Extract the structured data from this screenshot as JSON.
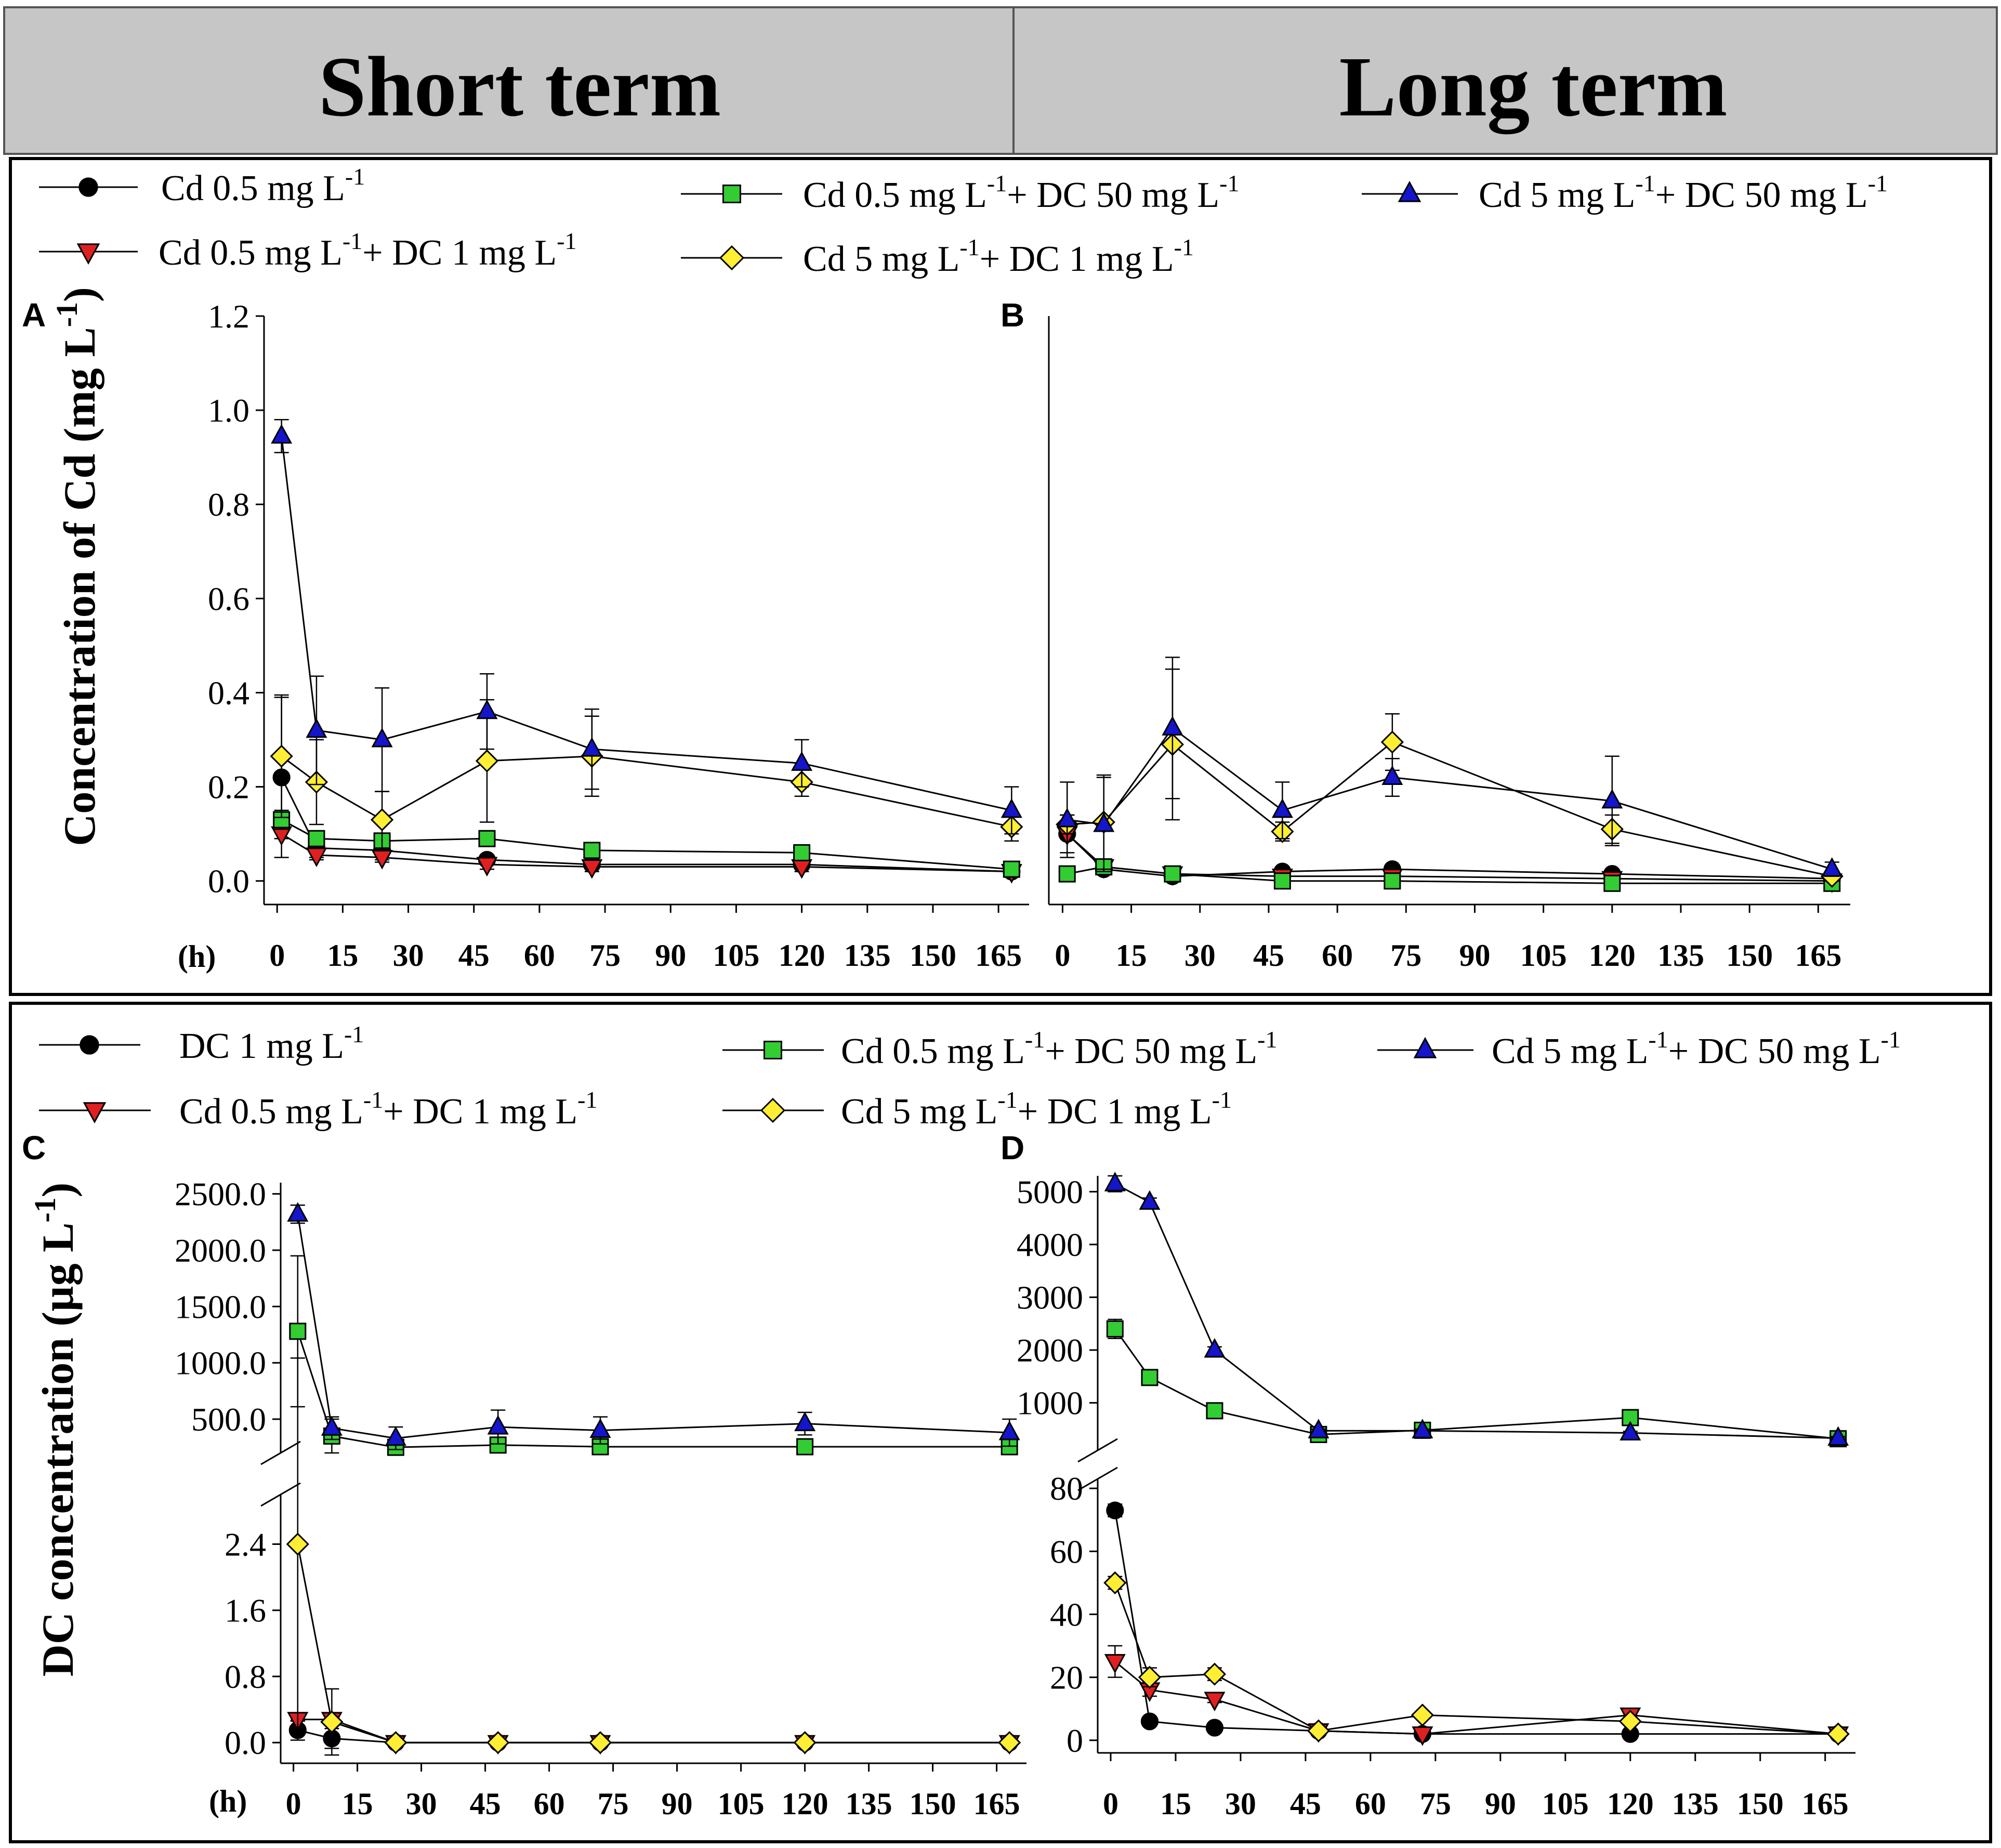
{
  "headers": {
    "short": "Short term",
    "long": "Long term"
  },
  "legend_top": {
    "items": [
      {
        "main": "Cd 0.5 mg L",
        "sup1": "-1",
        "mid": "",
        "sup2": "",
        "marker": "circle",
        "color": "#000000"
      },
      {
        "main": "Cd 0.5 mg L",
        "sup1": "-1",
        "mid": "+ DC 50 mg L",
        "sup2": "-1",
        "marker": "square",
        "color": "#33cc33"
      },
      {
        "main": "Cd 5 mg L",
        "sup1": "-1",
        "mid": "+ DC 50 mg L",
        "sup2": "-1",
        "marker": "triangle-up",
        "color": "#1515cc"
      },
      {
        "main": "Cd 0.5 mg L",
        "sup1": "-1",
        "mid": "+ DC 1 mg L",
        "sup2": "-1",
        "marker": "triangle-down",
        "color": "#e02020"
      },
      {
        "main": "Cd 5 mg L",
        "sup1": "-1",
        "mid": "+ DC 1 mg L",
        "sup2": "-1",
        "marker": "diamond",
        "color": "#ffee33"
      }
    ]
  },
  "legend_bottom": {
    "items": [
      {
        "main": "DC 1 mg L",
        "sup1": "-1",
        "mid": "",
        "sup2": "",
        "marker": "circle",
        "color": "#000000"
      },
      {
        "main": "Cd 0.5 mg L",
        "sup1": "-1",
        "mid": "+ DC 50 mg L",
        "sup2": "-1",
        "marker": "square",
        "color": "#33cc33"
      },
      {
        "main": "Cd 5 mg L",
        "sup1": "-1",
        "mid": "+ DC 50 mg L",
        "sup2": "-1",
        "marker": "triangle-up",
        "color": "#1515cc"
      },
      {
        "main": "Cd 0.5 mg L",
        "sup1": "-1",
        "mid": "+ DC 1 mg L",
        "sup2": "-1",
        "marker": "triangle-down",
        "color": "#e02020"
      },
      {
        "main": "Cd 5 mg L",
        "sup1": "-1",
        "mid": "+ DC 1 mg L",
        "sup2": "-1",
        "marker": "diamond",
        "color": "#ffee33"
      }
    ]
  },
  "y_labels": {
    "top": {
      "main": "Concentration of Cd (mg L",
      "sup": "-1",
      "tail": ")"
    },
    "bottom": {
      "main": "DC concentration (µg L",
      "sup": "-1",
      "tail": ")"
    }
  },
  "chart_data": [
    {
      "id": "A",
      "type": "line",
      "panel_label": "A",
      "xlabel": "(h)",
      "xlim": [
        -3,
        172
      ],
      "ylim": [
        -0.05,
        1.2
      ],
      "x_ticks": [
        0,
        15,
        30,
        45,
        60,
        75,
        90,
        105,
        120,
        135,
        150,
        165
      ],
      "y_ticks": [
        0.0,
        0.2,
        0.4,
        0.6,
        0.8,
        1.0,
        1.2
      ],
      "y_tick_labels": [
        "0.0",
        "0.2",
        "0.4",
        "0.6",
        "0.8",
        "1.0",
        "1.2"
      ],
      "series": [
        {
          "name": "Cd 0.5 mg L-1",
          "marker": "circle",
          "color": "#000000",
          "x": [
            1,
            9,
            24,
            48,
            72,
            120,
            168
          ],
          "y": [
            0.22,
            0.07,
            0.065,
            0.045,
            0.035,
            0.035,
            0.02
          ],
          "err": [
            0.17,
            0.02,
            0.02,
            0.01,
            0.01,
            0.01,
            0.01
          ]
        },
        {
          "name": "Cd 0.5 mg L-1+ DC 1 mg L-1",
          "marker": "triangle-down",
          "color": "#e02020",
          "x": [
            1,
            9,
            24,
            48,
            72,
            120,
            168
          ],
          "y": [
            0.1,
            0.055,
            0.05,
            0.035,
            0.03,
            0.03,
            0.02
          ],
          "err": [
            0.01,
            0.01,
            0.01,
            0.01,
            0.01,
            0.01,
            0.01
          ]
        },
        {
          "name": "Cd 0.5 mg L-1+ DC 50 mg L-1",
          "marker": "square",
          "color": "#33cc33",
          "x": [
            1,
            9,
            24,
            48,
            72,
            120,
            168
          ],
          "y": [
            0.13,
            0.09,
            0.085,
            0.09,
            0.065,
            0.06,
            0.025
          ],
          "err": [
            0.02,
            0.01,
            0.01,
            0.01,
            0.01,
            0.01,
            0.01
          ]
        },
        {
          "name": "Cd 5 mg L-1+ DC 1 mg L-1",
          "marker": "diamond",
          "color": "#ffee33",
          "x": [
            1,
            9,
            24,
            48,
            72,
            120,
            168
          ],
          "y": [
            0.265,
            0.21,
            0.13,
            0.255,
            0.265,
            0.21,
            0.115
          ],
          "err": [
            0.13,
            0.09,
            0.06,
            0.13,
            0.085,
            0.03,
            0.03
          ]
        },
        {
          "name": "Cd 5 mg L-1+ DC 50 mg L-1",
          "marker": "triangle-up",
          "color": "#1515cc",
          "x": [
            1,
            9,
            24,
            48,
            72,
            120,
            168
          ],
          "y": [
            0.945,
            0.32,
            0.3,
            0.36,
            0.28,
            0.25,
            0.15
          ],
          "err": [
            0.035,
            0.115,
            0.11,
            0.08,
            0.085,
            0.05,
            0.05
          ]
        }
      ]
    },
    {
      "id": "B",
      "type": "line",
      "panel_label": "B",
      "xlabel": "",
      "xlim": [
        -3,
        172
      ],
      "ylim": [
        -0.05,
        1.2
      ],
      "x_ticks": [
        0,
        15,
        30,
        45,
        60,
        75,
        90,
        105,
        120,
        135,
        150,
        165
      ],
      "y_ticks": [],
      "y_tick_labels": [],
      "series": [
        {
          "name": "Cd 0.5 mg L-1",
          "marker": "circle",
          "color": "#000000",
          "x": [
            1,
            9,
            24,
            48,
            72,
            120,
            168
          ],
          "y": [
            0.1,
            0.025,
            0.01,
            0.02,
            0.025,
            0.015,
            0.005
          ],
          "err": [
            0.04,
            0.005,
            0.005,
            0.005,
            0.005,
            0.005,
            0.005
          ]
        },
        {
          "name": "Cd 0.5 mg L-1+ DC 1 mg L-1",
          "marker": "triangle-down",
          "color": "#e02020",
          "x": [
            1,
            9,
            24,
            48,
            72,
            120,
            168
          ],
          "y": [
            0.1,
            0.03,
            0.015,
            0.01,
            0.01,
            0.005,
            0.0
          ],
          "err": [
            0.01,
            0.005,
            0.005,
            0.005,
            0.005,
            0.005,
            0.005
          ]
        },
        {
          "name": "Cd 0.5 mg L-1+ DC 50 mg L-1",
          "marker": "square",
          "color": "#33cc33",
          "x": [
            1,
            9,
            24,
            48,
            72,
            120,
            168
          ],
          "y": [
            0.015,
            0.03,
            0.015,
            0.0,
            0.0,
            -0.005,
            -0.005
          ],
          "err": [
            0.005,
            0.005,
            0.005,
            0.005,
            0.005,
            0.005,
            0.005
          ]
        },
        {
          "name": "Cd 5 mg L-1+ DC 1 mg L-1",
          "marker": "diamond",
          "color": "#ffee33",
          "x": [
            1,
            9,
            24,
            48,
            72,
            120,
            168
          ],
          "y": [
            0.12,
            0.125,
            0.29,
            0.105,
            0.295,
            0.11,
            0.01
          ],
          "err": [
            0.02,
            0.1,
            0.16,
            0.02,
            0.06,
            0.03,
            0.01
          ]
        },
        {
          "name": "Cd 5 mg L-1+ DC 50 mg L-1",
          "marker": "triangle-up",
          "color": "#1515cc",
          "x": [
            1,
            9,
            24,
            48,
            72,
            120,
            168
          ],
          "y": [
            0.13,
            0.12,
            0.325,
            0.15,
            0.22,
            0.17,
            0.025
          ],
          "err": [
            0.08,
            0.1,
            0.15,
            0.06,
            0.04,
            0.095,
            0.015
          ]
        }
      ]
    },
    {
      "id": "C",
      "type": "line",
      "panel_label": "C",
      "xlabel": "(h)",
      "xlim": [
        -3,
        172
      ],
      "x_ticks": [
        0,
        15,
        30,
        45,
        60,
        75,
        90,
        105,
        120,
        135,
        150,
        165
      ],
      "broken_axis": true,
      "upper": {
        "ylim": [
          200,
          2600
        ],
        "y_ticks": [
          500,
          1000,
          1500,
          2000,
          2500
        ],
        "y_tick_labels": [
          "500.0",
          "1000.0",
          "1500.0",
          "2000.0",
          "2500.0"
        ],
        "series": [
          {
            "name": "Cd 0.5 mg L-1+ DC 50 mg L-1",
            "marker": "square",
            "color": "#33cc33",
            "x": [
              1,
              9,
              24,
              48,
              72,
              120,
              168
            ],
            "y": [
              1280,
              350,
              250,
              270,
              255,
              255,
              255
            ],
            "err": [
              670,
              150,
              20,
              20,
              20,
              20,
              20
            ]
          },
          {
            "name": "Cd 5 mg L-1+ DC 50 mg L-1",
            "marker": "triangle-up",
            "color": "#1515cc",
            "x": [
              1,
              9,
              24,
              48,
              72,
              120,
              168
            ],
            "y": [
              2320,
              420,
              330,
              430,
              400,
              460,
              380
            ],
            "err": [
              80,
              100,
              100,
              150,
              120,
              100,
              120
            ]
          }
        ]
      },
      "lower": {
        "ylim": [
          -0.25,
          3.0
        ],
        "y_ticks": [
          0.0,
          0.8,
          1.6,
          2.4
        ],
        "y_tick_labels": [
          "0.0",
          "0.8",
          "1.6",
          "2.4"
        ],
        "series": [
          {
            "name": "DC 1 mg L-1",
            "marker": "circle",
            "color": "#000000",
            "x": [
              1,
              9,
              24,
              48,
              72,
              120,
              168
            ],
            "y": [
              0.15,
              0.05,
              0.0,
              0.0,
              0.0,
              0.0,
              0.0
            ],
            "err": [
              0.12,
              0.12,
              0.0,
              0.0,
              0.0,
              0.0,
              0.0
            ]
          },
          {
            "name": "Cd 0.5 mg L-1+ DC 1 mg L-1",
            "marker": "triangle-down",
            "color": "#e02020",
            "x": [
              1,
              9,
              24,
              48,
              72,
              120,
              168
            ],
            "y": [
              0.28,
              0.28,
              0.0,
              0.0,
              0.0,
              0.0,
              0.0
            ],
            "err": [
              0.02,
              0.02,
              0.0,
              0.0,
              0.0,
              0.0,
              0.0
            ]
          },
          {
            "name": "Cd 5 mg L-1+ DC 1 mg L-1",
            "marker": "diamond",
            "color": "#ffee33",
            "x": [
              1,
              9,
              24,
              48,
              72,
              120,
              168
            ],
            "y": [
              2.4,
              0.25,
              0.0,
              0.0,
              0.0,
              0.0,
              0.0
            ],
            "err": [
              2.25,
              0.4,
              0.0,
              0.0,
              0.0,
              0.0,
              0.0
            ]
          }
        ]
      }
    },
    {
      "id": "D",
      "type": "line",
      "panel_label": "D",
      "xlabel": "",
      "xlim": [
        -3,
        172
      ],
      "x_ticks": [
        0,
        15,
        30,
        45,
        60,
        75,
        90,
        105,
        120,
        135,
        150,
        165
      ],
      "broken_axis": true,
      "upper": {
        "ylim": [
          100,
          5300
        ],
        "y_ticks": [
          1000,
          2000,
          3000,
          4000,
          5000
        ],
        "y_tick_labels": [
          "1000",
          "2000",
          "3000",
          "4000",
          "5000"
        ],
        "series": [
          {
            "name": "Cd 0.5 mg L-1+ DC 50 mg L-1",
            "marker": "square",
            "color": "#33cc33",
            "x": [
              1,
              9,
              24,
              48,
              72,
              120,
              168
            ],
            "y": [
              2400,
              1480,
              850,
              400,
              480,
              720,
              320
            ],
            "err": [
              180,
              70,
              50,
              30,
              30,
              50,
              30
            ]
          },
          {
            "name": "Cd 5 mg L-1+ DC 50 mg L-1",
            "marker": "triangle-up",
            "color": "#1515cc",
            "x": [
              1,
              9,
              24,
              48,
              72,
              120,
              168
            ],
            "y": [
              5150,
              4800,
              2000,
              470,
              470,
              430,
              330
            ],
            "err": [
              150,
              80,
              60,
              30,
              30,
              30,
              30
            ]
          }
        ]
      },
      "lower": {
        "ylim": [
          -4,
          83
        ],
        "y_ticks": [
          0,
          20,
          40,
          60,
          80
        ],
        "y_tick_labels": [
          "0",
          "20",
          "40",
          "60",
          "80"
        ],
        "series": [
          {
            "name": "DC 1 mg L-1",
            "marker": "circle",
            "color": "#000000",
            "x": [
              1,
              9,
              24,
              48,
              72,
              120,
              168
            ],
            "y": [
              73,
              6,
              4,
              3,
              2,
              2,
              2
            ],
            "err": [
              2,
              1,
              1,
              0.5,
              0.5,
              0.5,
              0.5
            ]
          },
          {
            "name": "Cd 0.5 mg L-1+ DC 1 mg L-1",
            "marker": "triangle-down",
            "color": "#e02020",
            "x": [
              1,
              9,
              24,
              48,
              72,
              120,
              168
            ],
            "y": [
              25,
              16,
              13,
              3,
              2,
              8,
              2
            ],
            "err": [
              5,
              2,
              1,
              0.5,
              0.5,
              1,
              0.5
            ]
          },
          {
            "name": "Cd 5 mg L-1+ DC 1 mg L-1",
            "marker": "diamond",
            "color": "#ffee33",
            "x": [
              1,
              9,
              24,
              48,
              72,
              120,
              168
            ],
            "y": [
              50,
              20,
              21,
              3,
              8,
              6,
              2
            ],
            "err": [
              2,
              3,
              2,
              0.5,
              1,
              1,
              0.5
            ]
          }
        ]
      }
    }
  ]
}
